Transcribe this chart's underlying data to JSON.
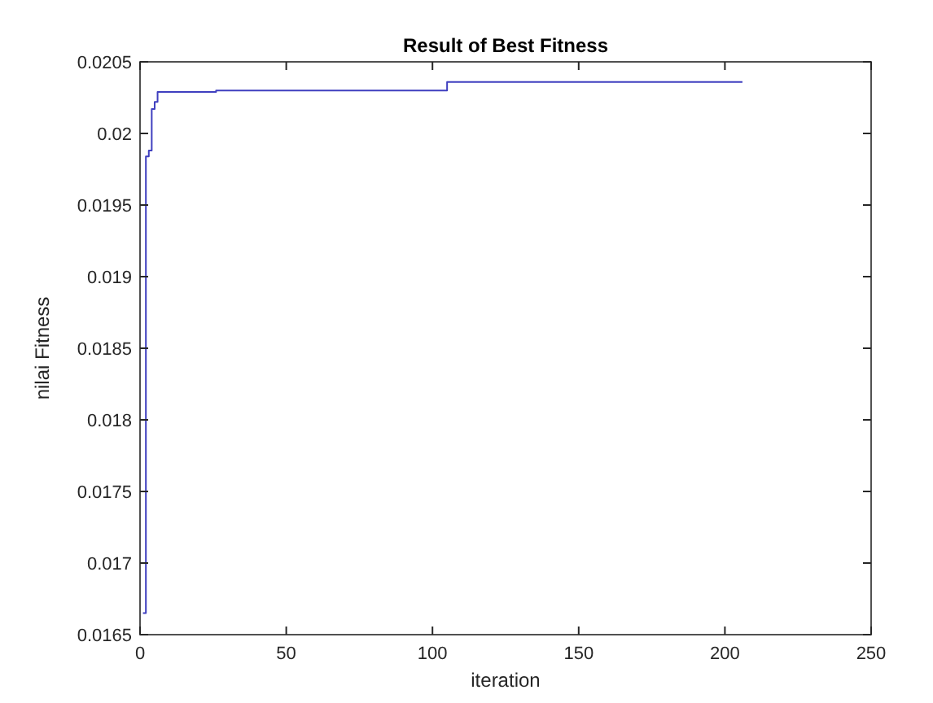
{
  "chart_data": {
    "type": "step",
    "title": "Result of Best Fitness",
    "xlabel": "iteration",
    "ylabel": "nilai Fitness",
    "xlim": [
      0,
      250
    ],
    "xticks": [
      0,
      50,
      100,
      150,
      200,
      250
    ],
    "ylim": [
      0.0165,
      0.0205
    ],
    "yticks": [
      0.0165,
      0.017,
      0.0175,
      0.018,
      0.0185,
      0.019,
      0.0195,
      0.02,
      0.0205
    ],
    "series": [
      {
        "color": "#3f3fbf",
        "x": [
          1,
          2,
          3,
          4,
          5,
          6,
          26,
          105,
          206
        ],
        "values": [
          0.01665,
          0.01984,
          0.01988,
          0.02017,
          0.02022,
          0.02029,
          0.0203,
          0.02036,
          0.02036
        ]
      }
    ]
  }
}
